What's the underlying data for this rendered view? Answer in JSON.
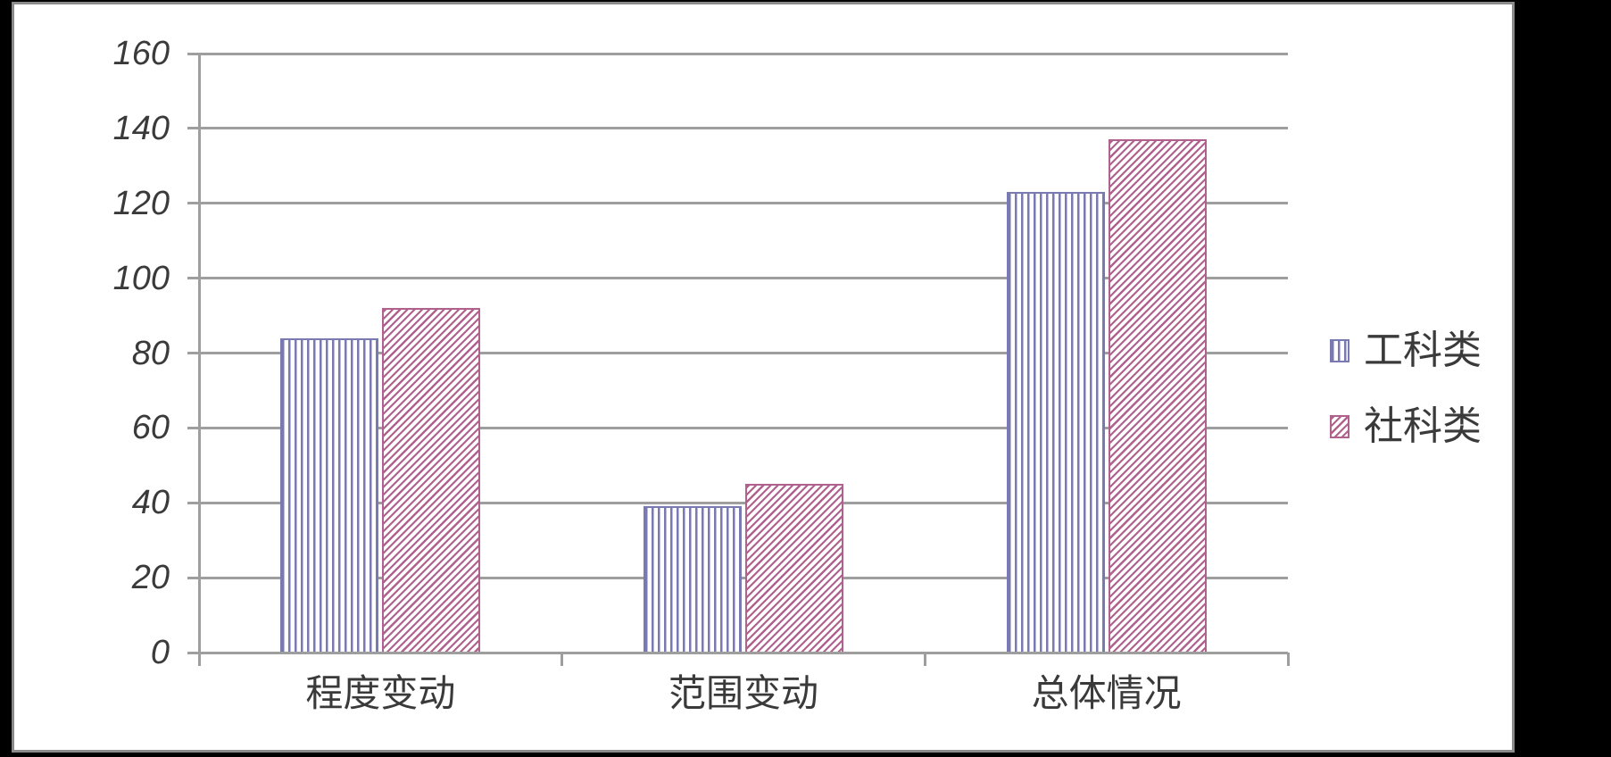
{
  "chart_data": {
    "type": "bar",
    "title": "",
    "xlabel": "",
    "ylabel": "",
    "categories": [
      "程度变动",
      "范围变动",
      "总体情况"
    ],
    "series": [
      {
        "name": "工科类",
        "values": [
          84,
          39,
          123
        ],
        "color": "#7a7ab2",
        "pattern": "vertical-stripes"
      },
      {
        "name": "社科类",
        "values": [
          92,
          45,
          137
        ],
        "color": "#b0618e",
        "pattern": "diagonal-stripes"
      }
    ],
    "ylim": [
      0,
      160
    ],
    "yticks": [
      0,
      20,
      40,
      60,
      80,
      100,
      120,
      140,
      160
    ],
    "ytick_labels": [
      "0",
      "20",
      "40",
      "60",
      "80",
      "100",
      "120",
      "140",
      "160"
    ],
    "grid": true,
    "legend_position": "right"
  },
  "legend": {
    "items": [
      {
        "label": "工科类",
        "swatch": "vertical-stripes-swatch"
      },
      {
        "label": "社科类",
        "swatch": "diagonal-stripes-swatch"
      }
    ]
  },
  "colors": {
    "page_background": "#000000",
    "panel_background": "#ffffff",
    "panel_border": "#8b8b8b",
    "gridline": "#9e9e9e",
    "axis": "#9e9e9e",
    "text": "#3a3a3a",
    "series_1": "#7a7ab2",
    "series_2": "#b0618e"
  }
}
